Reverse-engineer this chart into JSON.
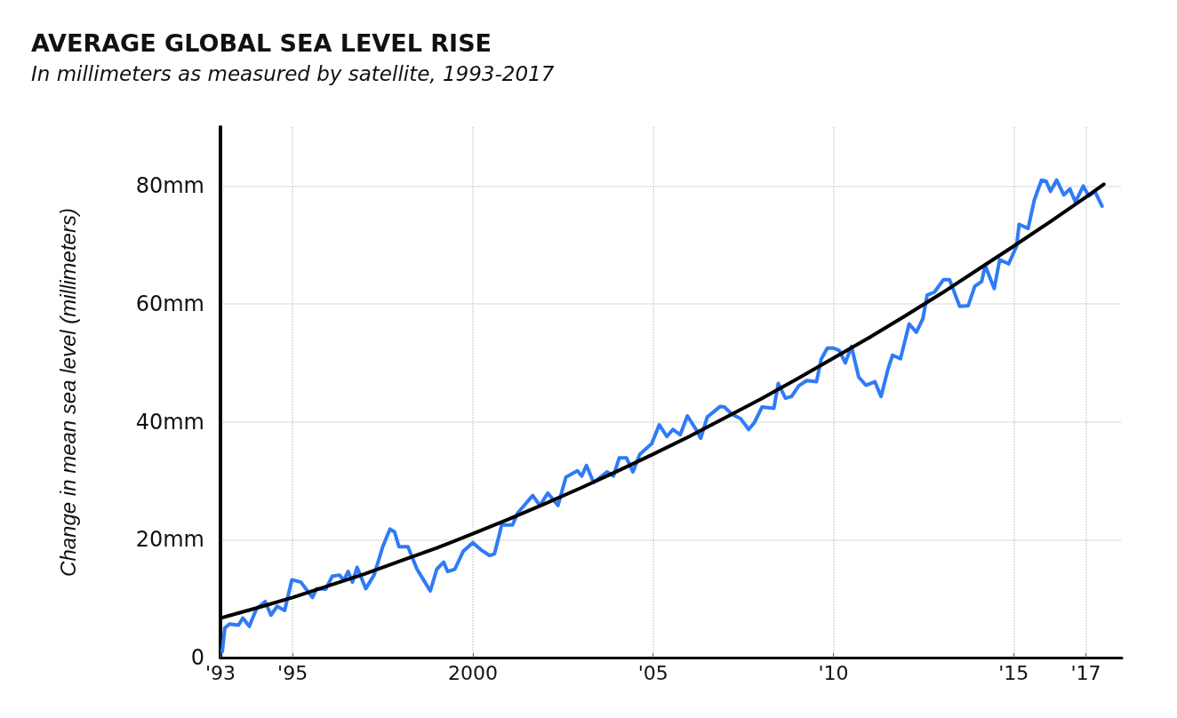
{
  "chart_data": {
    "type": "line",
    "title": "AVERAGE GLOBAL SEA LEVEL RISE",
    "subtitle": "In millimeters as measured by satellite, 1993-2017",
    "ylabel": "Change in mean sea level (millimeters)",
    "xlim": [
      1993,
      2018
    ],
    "ylim": [
      0,
      90
    ],
    "xticks": [
      {
        "value": 1993,
        "label": "'93"
      },
      {
        "value": 1995,
        "label": "'95"
      },
      2000,
      {
        "value": 2005,
        "label": "'05"
      },
      {
        "value": 2010,
        "label": "'10"
      },
      {
        "value": 2015,
        "label": "'15"
      },
      {
        "value": 2017,
        "label": "'17"
      }
    ],
    "yticks": [
      0,
      {
        "value": 20,
        "label": "20mm"
      },
      {
        "value": 40,
        "label": "40mm"
      },
      {
        "value": 60,
        "label": "60mm"
      },
      {
        "value": 80,
        "label": "80mm"
      }
    ],
    "grid": true,
    "marker": "none",
    "line_style": "solid",
    "series": [
      {
        "color": "#2f7bf5",
        "x": [
          1993.05,
          1993.12,
          1993.25,
          1993.5,
          1993.62,
          1993.8,
          1994.0,
          1994.24,
          1994.4,
          1994.57,
          1994.78,
          1994.98,
          1995.23,
          1995.55,
          1995.67,
          1995.92,
          1996.1,
          1996.3,
          1996.42,
          1996.54,
          1996.66,
          1996.79,
          1997.03,
          1997.26,
          1997.5,
          1997.7,
          1997.83,
          1997.95,
          1998.2,
          1998.45,
          1998.64,
          1998.82,
          1999.0,
          1999.19,
          1999.3,
          1999.5,
          1999.73,
          2000.0,
          2000.22,
          2000.47,
          2000.6,
          2000.8,
          2001.1,
          2001.24,
          2001.66,
          2001.86,
          2002.08,
          2002.36,
          2002.58,
          2002.9,
          2003.02,
          2003.15,
          2003.35,
          2003.72,
          2003.9,
          2004.06,
          2004.26,
          2004.44,
          2004.63,
          2004.96,
          2005.17,
          2005.38,
          2005.55,
          2005.75,
          2005.95,
          2006.2,
          2006.32,
          2006.5,
          2006.86,
          2006.98,
          2007.18,
          2007.43,
          2007.65,
          2007.8,
          2008.02,
          2008.35,
          2008.47,
          2008.67,
          2008.84,
          2009.04,
          2009.26,
          2009.53,
          2009.66,
          2009.83,
          2010.0,
          2010.16,
          2010.33,
          2010.5,
          2010.7,
          2010.9,
          2011.15,
          2011.32,
          2011.52,
          2011.64,
          2011.86,
          2012.1,
          2012.3,
          2012.48,
          2012.6,
          2012.8,
          2013.05,
          2013.22,
          2013.5,
          2013.74,
          2013.92,
          2014.11,
          2014.21,
          2014.46,
          2014.61,
          2014.86,
          2015.08,
          2015.15,
          2015.4,
          2015.57,
          2015.77,
          2015.9,
          2016.02,
          2016.19,
          2016.39,
          2016.56,
          2016.71,
          2016.93,
          2017.08,
          2017.25,
          2017.45
        ],
        "values": [
          1.0,
          5.0,
          5.7,
          5.5,
          6.7,
          5.3,
          8.3,
          9.5,
          7.2,
          8.7,
          8.0,
          13.2,
          12.8,
          10.2,
          11.7,
          11.6,
          13.8,
          14.0,
          13.1,
          14.6,
          12.8,
          15.3,
          11.7,
          14.0,
          18.8,
          21.8,
          21.3,
          18.8,
          18.8,
          15.0,
          13.1,
          11.3,
          15.0,
          16.2,
          14.6,
          15.0,
          18.0,
          19.5,
          18.3,
          17.3,
          17.6,
          22.5,
          22.5,
          24.5,
          27.5,
          25.8,
          27.9,
          25.8,
          30.6,
          31.7,
          30.8,
          32.6,
          29.7,
          31.5,
          30.8,
          33.9,
          33.9,
          31.5,
          34.5,
          36.3,
          39.5,
          37.5,
          38.7,
          37.8,
          41.0,
          38.6,
          37.2,
          40.8,
          42.6,
          42.5,
          41.3,
          40.5,
          38.7,
          39.8,
          42.5,
          42.3,
          46.5,
          44.0,
          44.3,
          46.1,
          47.0,
          46.8,
          50.6,
          52.5,
          52.5,
          52.1,
          50.0,
          52.8,
          47.6,
          46.2,
          46.8,
          44.3,
          49.1,
          51.3,
          50.7,
          56.6,
          55.2,
          57.5,
          61.5,
          62.0,
          64.1,
          64.1,
          59.6,
          59.7,
          63.0,
          63.8,
          66.5,
          62.6,
          67.5,
          66.8,
          69.8,
          73.5,
          72.8,
          77.6,
          81.0,
          80.8,
          79.1,
          81.0,
          78.5,
          79.5,
          77.3,
          80.0,
          78.3,
          79.1,
          76.6
        ]
      },
      {
        "color": "#000000",
        "x": [
          1993,
          1994,
          1995,
          1996,
          1997,
          1998,
          1999,
          2000,
          2001,
          2002,
          2003,
          2004,
          2005,
          2006,
          2007,
          2008,
          2009,
          2010,
          2011,
          2012,
          2013,
          2014,
          2015,
          2016,
          2017,
          2017.5
        ],
        "values": [
          6.7,
          8.4,
          10.2,
          12.2,
          14.2,
          16.4,
          18.6,
          21.0,
          23.5,
          26.1,
          28.8,
          31.6,
          34.5,
          37.5,
          40.7,
          43.9,
          47.3,
          50.8,
          54.3,
          58.0,
          61.8,
          65.8,
          69.8,
          73.9,
          78.1,
          80.3
        ]
      }
    ]
  }
}
